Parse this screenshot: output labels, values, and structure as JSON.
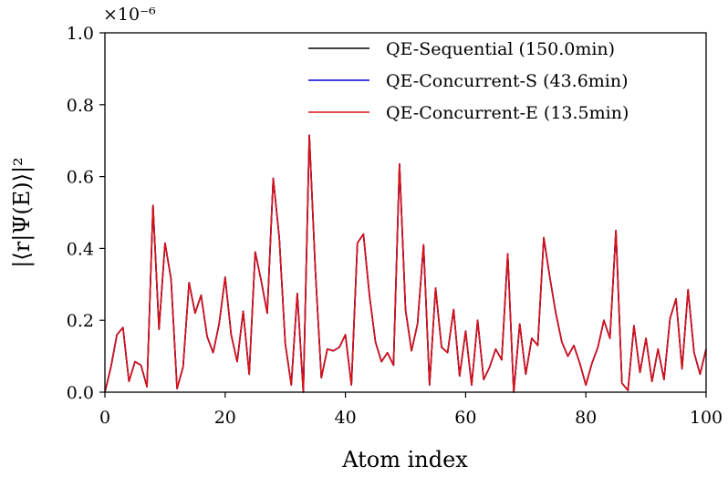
{
  "chart_data": {
    "type": "line",
    "title": "",
    "xlabel": "Atom index",
    "ylabel": "|⟨r|Ψ(E)⟩|²",
    "y_scale_label": "×10⁻⁶",
    "xlim": [
      0,
      100
    ],
    "ylim": [
      0.0,
      1.0
    ],
    "xticks": [
      0,
      20,
      40,
      60,
      80,
      100
    ],
    "xtick_labels": [
      "0",
      "20",
      "40",
      "60",
      "80",
      "100"
    ],
    "yticks": [
      0.0,
      0.2,
      0.4,
      0.6,
      0.8,
      1.0
    ],
    "ytick_labels": [
      "0.0",
      "0.2",
      "0.4",
      "0.6",
      "0.8",
      "1.0"
    ],
    "grid": false,
    "legend_position": "top-right",
    "x": [
      0,
      1,
      2,
      3,
      4,
      5,
      6,
      7,
      8,
      9,
      10,
      11,
      12,
      13,
      14,
      15,
      16,
      17,
      18,
      19,
      20,
      21,
      22,
      23,
      24,
      25,
      26,
      27,
      28,
      29,
      30,
      31,
      32,
      33,
      34,
      35,
      36,
      37,
      38,
      39,
      40,
      41,
      42,
      43,
      44,
      45,
      46,
      47,
      48,
      49,
      50,
      51,
      52,
      53,
      54,
      55,
      56,
      57,
      58,
      59,
      60,
      61,
      62,
      63,
      64,
      65,
      66,
      67,
      68,
      69,
      70,
      71,
      72,
      73,
      74,
      75,
      76,
      77,
      78,
      79,
      80,
      81,
      82,
      83,
      84,
      85,
      86,
      87,
      88,
      89,
      90,
      91,
      92,
      93,
      94,
      95,
      96,
      97,
      98,
      99,
      100
    ],
    "series": [
      {
        "name": "QE-Sequential (150.0min)",
        "color": "#000000",
        "values": [
          0.0,
          0.07,
          0.16,
          0.18,
          0.03,
          0.085,
          0.075,
          0.015,
          0.52,
          0.175,
          0.415,
          0.315,
          0.01,
          0.07,
          0.305,
          0.22,
          0.27,
          0.155,
          0.11,
          0.19,
          0.32,
          0.16,
          0.085,
          0.225,
          0.05,
          0.39,
          0.31,
          0.22,
          0.595,
          0.43,
          0.135,
          0.02,
          0.275,
          0.0,
          0.715,
          0.34,
          0.04,
          0.12,
          0.115,
          0.125,
          0.16,
          0.02,
          0.415,
          0.44,
          0.27,
          0.14,
          0.085,
          0.11,
          0.075,
          0.635,
          0.23,
          0.115,
          0.19,
          0.41,
          0.02,
          0.29,
          0.125,
          0.11,
          0.23,
          0.045,
          0.17,
          0.02,
          0.2,
          0.035,
          0.07,
          0.12,
          0.09,
          0.385,
          0.0,
          0.19,
          0.05,
          0.15,
          0.13,
          0.43,
          0.32,
          0.22,
          0.14,
          0.1,
          0.13,
          0.08,
          0.02,
          0.08,
          0.125,
          0.2,
          0.15,
          0.45,
          0.025,
          0.005,
          0.185,
          0.055,
          0.15,
          0.03,
          0.12,
          0.035,
          0.205,
          0.26,
          0.065,
          0.285,
          0.11,
          0.05,
          0.12
        ]
      },
      {
        "name": "QE-Concurrent-S (43.6min)",
        "color": "#0000dd",
        "values": [
          0.0,
          0.07,
          0.16,
          0.18,
          0.03,
          0.085,
          0.075,
          0.015,
          0.52,
          0.175,
          0.415,
          0.315,
          0.01,
          0.07,
          0.305,
          0.22,
          0.27,
          0.155,
          0.11,
          0.19,
          0.32,
          0.16,
          0.085,
          0.225,
          0.05,
          0.39,
          0.31,
          0.22,
          0.595,
          0.43,
          0.135,
          0.02,
          0.275,
          0.0,
          0.715,
          0.34,
          0.04,
          0.12,
          0.115,
          0.125,
          0.16,
          0.02,
          0.415,
          0.44,
          0.27,
          0.14,
          0.085,
          0.11,
          0.075,
          0.635,
          0.23,
          0.115,
          0.19,
          0.41,
          0.02,
          0.29,
          0.125,
          0.11,
          0.23,
          0.045,
          0.17,
          0.02,
          0.2,
          0.035,
          0.07,
          0.12,
          0.09,
          0.385,
          0.0,
          0.19,
          0.05,
          0.15,
          0.13,
          0.43,
          0.32,
          0.22,
          0.14,
          0.1,
          0.13,
          0.08,
          0.02,
          0.08,
          0.125,
          0.2,
          0.15,
          0.45,
          0.025,
          0.005,
          0.185,
          0.055,
          0.15,
          0.03,
          0.12,
          0.035,
          0.205,
          0.26,
          0.065,
          0.285,
          0.11,
          0.05,
          0.12
        ]
      },
      {
        "name": "QE-Concurrent-E (13.5min)",
        "color": "#dd1111",
        "values": [
          0.0,
          0.07,
          0.16,
          0.18,
          0.03,
          0.085,
          0.075,
          0.015,
          0.52,
          0.175,
          0.415,
          0.315,
          0.01,
          0.07,
          0.305,
          0.22,
          0.27,
          0.155,
          0.11,
          0.19,
          0.32,
          0.16,
          0.085,
          0.225,
          0.05,
          0.39,
          0.31,
          0.22,
          0.595,
          0.43,
          0.135,
          0.02,
          0.275,
          0.0,
          0.715,
          0.34,
          0.04,
          0.12,
          0.115,
          0.125,
          0.16,
          0.02,
          0.415,
          0.44,
          0.27,
          0.14,
          0.085,
          0.11,
          0.075,
          0.635,
          0.23,
          0.115,
          0.19,
          0.41,
          0.02,
          0.29,
          0.125,
          0.11,
          0.23,
          0.045,
          0.17,
          0.02,
          0.2,
          0.035,
          0.07,
          0.12,
          0.09,
          0.385,
          0.0,
          0.19,
          0.05,
          0.15,
          0.13,
          0.43,
          0.32,
          0.22,
          0.14,
          0.1,
          0.13,
          0.08,
          0.02,
          0.08,
          0.125,
          0.2,
          0.15,
          0.45,
          0.025,
          0.005,
          0.185,
          0.055,
          0.15,
          0.03,
          0.12,
          0.035,
          0.205,
          0.26,
          0.065,
          0.285,
          0.11,
          0.05,
          0.12
        ]
      }
    ]
  }
}
